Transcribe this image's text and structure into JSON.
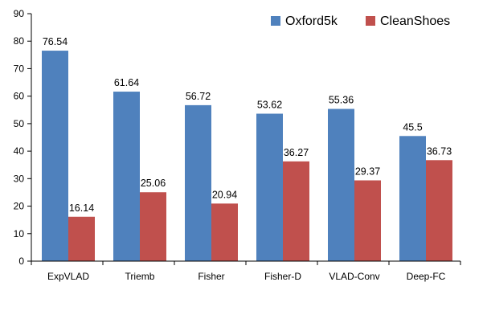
{
  "chart_data": {
    "type": "bar",
    "categories": [
      "ExpVLAD",
      "Triemb",
      "Fisher",
      "Fisher-D",
      "VLAD-Conv",
      "Deep-FC"
    ],
    "series": [
      {
        "name": "Oxford5k",
        "color": "#4F81BD",
        "values": [
          76.54,
          61.64,
          56.72,
          53.62,
          55.36,
          45.5
        ]
      },
      {
        "name": "CleanShoes",
        "color": "#C0504D",
        "values": [
          16.14,
          25.06,
          20.94,
          36.27,
          29.37,
          36.73
        ]
      }
    ],
    "data_labels": [
      [
        "76.54",
        "61.64",
        "56.72",
        "53.62",
        "55.36",
        "45.5"
      ],
      [
        "16.14",
        "25.06",
        "20.94",
        "36.27",
        "29.37",
        "36.73"
      ]
    ],
    "ylim": [
      0,
      90
    ],
    "yticks": [
      0,
      10,
      20,
      30,
      40,
      50,
      60,
      70,
      80,
      90
    ],
    "ytick_labels": [
      "0",
      "10",
      "20",
      "30",
      "40",
      "50",
      "60",
      "70",
      "80",
      "90"
    ],
    "grid": false,
    "legend_position": "top-right",
    "title": "",
    "xlabel": "",
    "ylabel": ""
  }
}
